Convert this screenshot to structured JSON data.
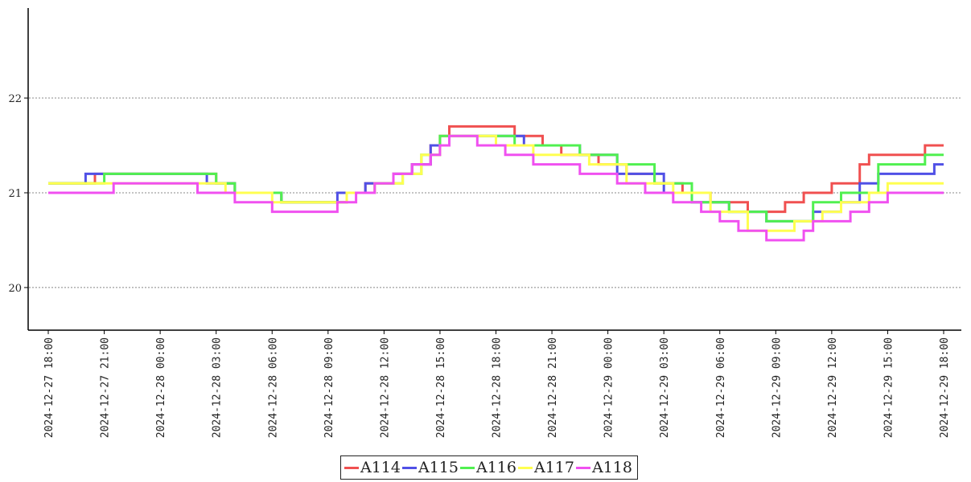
{
  "chart_data": {
    "type": "line",
    "title": "",
    "xlabel": "",
    "ylabel": "",
    "ylim": [
      19.55,
      22.95
    ],
    "yticks": [
      20,
      21,
      22
    ],
    "grid": "horizontal-dotted",
    "legend_position": "bottom-center",
    "x_tick_labels": [
      "2024-12-27 18:00",
      "2024-12-27 21:00",
      "2024-12-28 00:00",
      "2024-12-28 03:00",
      "2024-12-28 06:00",
      "2024-12-28 09:00",
      "2024-12-28 12:00",
      "2024-12-28 15:00",
      "2024-12-28 18:00",
      "2024-12-28 21:00",
      "2024-12-29 00:00",
      "2024-12-29 03:00",
      "2024-12-29 06:00",
      "2024-12-29 09:00",
      "2024-12-29 12:00",
      "2024-12-29 15:00",
      "2024-12-29 18:00"
    ],
    "xlim": [
      "2024-12-27 18:00",
      "2024-12-29 18:00"
    ],
    "series": [
      {
        "name": "A114",
        "color": "#f05050",
        "points": [
          [
            "2024-12-27 18:00",
            21.1
          ],
          [
            "2024-12-27 20:30",
            21.2
          ],
          [
            "2024-12-28 03:00",
            21.1
          ],
          [
            "2024-12-28 04:00",
            21.0
          ],
          [
            "2024-12-28 06:30",
            20.9
          ],
          [
            "2024-12-28 10:00",
            21.0
          ],
          [
            "2024-12-28 11:00",
            21.1
          ],
          [
            "2024-12-28 12:30",
            21.2
          ],
          [
            "2024-12-28 13:30",
            21.3
          ],
          [
            "2024-12-28 14:30",
            21.5
          ],
          [
            "2024-12-28 15:00",
            21.6
          ],
          [
            "2024-12-28 15:30",
            21.7
          ],
          [
            "2024-12-28 19:00",
            21.6
          ],
          [
            "2024-12-28 20:30",
            21.5
          ],
          [
            "2024-12-28 21:30",
            21.4
          ],
          [
            "2024-12-28 23:30",
            21.3
          ],
          [
            "2024-12-29 01:00",
            21.2
          ],
          [
            "2024-12-29 02:30",
            21.1
          ],
          [
            "2024-12-29 04:00",
            21.0
          ],
          [
            "2024-12-29 05:30",
            20.9
          ],
          [
            "2024-12-29 07:30",
            20.8
          ],
          [
            "2024-12-29 09:30",
            20.9
          ],
          [
            "2024-12-29 10:30",
            21.0
          ],
          [
            "2024-12-29 12:00",
            21.1
          ],
          [
            "2024-12-29 13:30",
            21.3
          ],
          [
            "2024-12-29 14:00",
            21.4
          ],
          [
            "2024-12-29 16:00",
            21.4
          ],
          [
            "2024-12-29 17:00",
            21.5
          ],
          [
            "2024-12-29 18:00",
            21.5
          ]
        ]
      },
      {
        "name": "A115",
        "color": "#5050e6",
        "points": [
          [
            "2024-12-27 18:00",
            21.1
          ],
          [
            "2024-12-27 20:00",
            21.2
          ],
          [
            "2024-12-28 02:30",
            21.1
          ],
          [
            "2024-12-28 04:00",
            21.0
          ],
          [
            "2024-12-28 06:30",
            20.9
          ],
          [
            "2024-12-28 09:30",
            21.0
          ],
          [
            "2024-12-28 11:00",
            21.1
          ],
          [
            "2024-12-28 12:30",
            21.2
          ],
          [
            "2024-12-28 13:30",
            21.3
          ],
          [
            "2024-12-28 14:30",
            21.5
          ],
          [
            "2024-12-28 15:30",
            21.6
          ],
          [
            "2024-12-28 19:30",
            21.5
          ],
          [
            "2024-12-28 22:30",
            21.4
          ],
          [
            "2024-12-29 00:30",
            21.2
          ],
          [
            "2024-12-29 03:00",
            21.0
          ],
          [
            "2024-12-29 04:30",
            20.9
          ],
          [
            "2024-12-29 06:30",
            20.8
          ],
          [
            "2024-12-29 08:30",
            20.7
          ],
          [
            "2024-12-29 11:00",
            20.8
          ],
          [
            "2024-12-29 12:30",
            20.9
          ],
          [
            "2024-12-29 13:30",
            21.1
          ],
          [
            "2024-12-29 14:30",
            21.2
          ],
          [
            "2024-12-29 17:30",
            21.3
          ],
          [
            "2024-12-29 18:00",
            21.3
          ]
        ]
      },
      {
        "name": "A116",
        "color": "#50f050",
        "points": [
          [
            "2024-12-27 18:00",
            21.1
          ],
          [
            "2024-12-27 21:00",
            21.2
          ],
          [
            "2024-12-28 03:00",
            21.1
          ],
          [
            "2024-12-28 04:00",
            21.0
          ],
          [
            "2024-12-28 06:30",
            20.9
          ],
          [
            "2024-12-28 10:00",
            21.0
          ],
          [
            "2024-12-28 11:30",
            21.1
          ],
          [
            "2024-12-28 13:00",
            21.2
          ],
          [
            "2024-12-28 14:00",
            21.4
          ],
          [
            "2024-12-28 15:00",
            21.6
          ],
          [
            "2024-12-28 19:00",
            21.5
          ],
          [
            "2024-12-28 22:30",
            21.4
          ],
          [
            "2024-12-29 00:30",
            21.3
          ],
          [
            "2024-12-29 02:30",
            21.1
          ],
          [
            "2024-12-29 04:30",
            20.9
          ],
          [
            "2024-12-29 06:30",
            20.8
          ],
          [
            "2024-12-29 08:30",
            20.7
          ],
          [
            "2024-12-29 11:00",
            20.9
          ],
          [
            "2024-12-29 12:30",
            21.0
          ],
          [
            "2024-12-29 14:30",
            21.3
          ],
          [
            "2024-12-29 17:00",
            21.4
          ],
          [
            "2024-12-29 18:00",
            21.4
          ]
        ]
      },
      {
        "name": "A117",
        "color": "#ffff50",
        "points": [
          [
            "2024-12-27 18:00",
            21.1
          ],
          [
            "2024-12-28 00:00",
            21.1
          ],
          [
            "2024-12-28 03:30",
            21.0
          ],
          [
            "2024-12-28 06:00",
            20.9
          ],
          [
            "2024-12-28 10:00",
            21.0
          ],
          [
            "2024-12-28 11:30",
            21.1
          ],
          [
            "2024-12-28 13:00",
            21.2
          ],
          [
            "2024-12-28 14:00",
            21.4
          ],
          [
            "2024-12-28 15:00",
            21.5
          ],
          [
            "2024-12-28 15:30",
            21.6
          ],
          [
            "2024-12-28 18:00",
            21.5
          ],
          [
            "2024-12-28 20:00",
            21.4
          ],
          [
            "2024-12-28 23:00",
            21.3
          ],
          [
            "2024-12-29 01:00",
            21.1
          ],
          [
            "2024-12-29 03:30",
            21.0
          ],
          [
            "2024-12-29 05:30",
            20.8
          ],
          [
            "2024-12-29 07:30",
            20.6
          ],
          [
            "2024-12-29 10:00",
            20.7
          ],
          [
            "2024-12-29 11:30",
            20.8
          ],
          [
            "2024-12-29 12:30",
            20.9
          ],
          [
            "2024-12-29 14:00",
            21.0
          ],
          [
            "2024-12-29 15:00",
            21.1
          ],
          [
            "2024-12-29 18:00",
            21.1
          ]
        ]
      },
      {
        "name": "A118",
        "color": "#f050f0",
        "points": [
          [
            "2024-12-27 18:00",
            21.0
          ],
          [
            "2024-12-27 21:30",
            21.1
          ],
          [
            "2024-12-28 02:00",
            21.0
          ],
          [
            "2024-12-28 04:00",
            20.9
          ],
          [
            "2024-12-28 06:00",
            20.8
          ],
          [
            "2024-12-28 09:30",
            20.9
          ],
          [
            "2024-12-28 10:30",
            21.0
          ],
          [
            "2024-12-28 11:30",
            21.1
          ],
          [
            "2024-12-28 12:30",
            21.2
          ],
          [
            "2024-12-28 13:30",
            21.3
          ],
          [
            "2024-12-28 14:30",
            21.4
          ],
          [
            "2024-12-28 15:00",
            21.5
          ],
          [
            "2024-12-28 15:30",
            21.6
          ],
          [
            "2024-12-28 17:00",
            21.5
          ],
          [
            "2024-12-28 18:30",
            21.4
          ],
          [
            "2024-12-28 20:00",
            21.3
          ],
          [
            "2024-12-28 22:30",
            21.2
          ],
          [
            "2024-12-29 00:30",
            21.1
          ],
          [
            "2024-12-29 02:00",
            21.0
          ],
          [
            "2024-12-29 03:30",
            20.9
          ],
          [
            "2024-12-29 05:00",
            20.8
          ],
          [
            "2024-12-29 06:00",
            20.7
          ],
          [
            "2024-12-29 07:00",
            20.6
          ],
          [
            "2024-12-29 08:30",
            20.5
          ],
          [
            "2024-12-29 10:30",
            20.6
          ],
          [
            "2024-12-29 11:00",
            20.7
          ],
          [
            "2024-12-29 13:00",
            20.8
          ],
          [
            "2024-12-29 14:00",
            20.9
          ],
          [
            "2024-12-29 15:00",
            21.0
          ],
          [
            "2024-12-29 18:00",
            21.0
          ]
        ]
      }
    ]
  },
  "legend": {
    "items": [
      {
        "label": "A114",
        "color": "#f05050"
      },
      {
        "label": "A115",
        "color": "#5050e6"
      },
      {
        "label": "A116",
        "color": "#50f050"
      },
      {
        "label": "A117",
        "color": "#ffff50"
      },
      {
        "label": "A118",
        "color": "#f050f0"
      }
    ]
  }
}
